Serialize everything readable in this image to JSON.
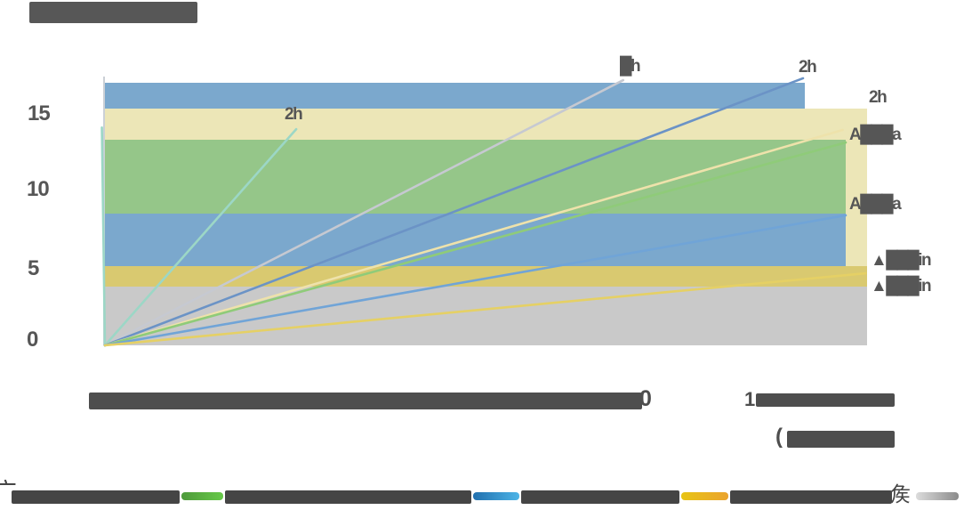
{
  "title": {
    "legible": false,
    "note": "title text rendered as illegible dark block in source image"
  },
  "axes": {
    "y_ticks": [
      "15",
      "10",
      "5",
      "0"
    ],
    "x_tick_trailing_char": "0",
    "x_right_tick_leading_char": "1",
    "x_unit_leading_char": "(",
    "x_labels_legible": false
  },
  "labels": {
    "line_top_mid": "█h",
    "line_top_right": "2h",
    "line_teal": "2h",
    "edge_top": "2h",
    "edge_upper": "A███a",
    "edge_mid": "A███a",
    "edge_low": "▲███in",
    "edge_lower": "▲███in"
  },
  "legend": {
    "left_glyph": "广",
    "right_glyph": "矦",
    "labels_legible": false,
    "items": [
      {
        "name": "series-green",
        "colors": [
          "#4e9a3b",
          "#66c848"
        ]
      },
      {
        "name": "series-blue",
        "colors": [
          "#2170ae",
          "#4db4e7"
        ]
      },
      {
        "name": "series-gold",
        "colors": [
          "#e8c414",
          "#eaa32e"
        ]
      },
      {
        "name": "series-gray",
        "colors": [
          "#dcdcdc",
          "#8b8b8b"
        ]
      }
    ]
  },
  "chart_data": {
    "type": "line",
    "description": "Fan/radial chart: straight lines from origin with duration labels (h / min), over horizontal colored value bands. Most text glyphs failed to render in source (tofu blobs).",
    "y_axis": {
      "ticks": [
        0,
        5,
        10,
        15
      ],
      "range": [
        0,
        17.2
      ]
    },
    "x_axis": {
      "legible": false,
      "normalized_range": [
        0,
        1
      ],
      "visible_fragments": [
        "0",
        "1",
        "("
      ]
    },
    "grid": false,
    "legend_position": "bottom",
    "bands": [
      {
        "name": "band-blue-top",
        "color": "#7ba8cd",
        "x": [
          0,
          0.918
        ],
        "y": [
          15.11,
          16.76
        ]
      },
      {
        "name": "band-paleyellow",
        "color": "#ece6b7",
        "x": [
          0,
          1.0
        ],
        "y": [
          13.12,
          15.11
        ]
      },
      {
        "name": "band-paleyellow-right",
        "color": "#ece6b7",
        "x": [
          0.972,
          1.0
        ],
        "y": [
          5.06,
          13.12
        ]
      },
      {
        "name": "band-green",
        "color": "#95c689",
        "x": [
          0,
          0.972
        ],
        "y": [
          8.41,
          13.12
        ]
      },
      {
        "name": "band-blue-mid",
        "color": "#7ba8cd",
        "x": [
          0,
          0.972
        ],
        "y": [
          5.06,
          8.41
        ]
      },
      {
        "name": "band-gold",
        "color": "#d9c970",
        "x": [
          0,
          1.0
        ],
        "y": [
          3.75,
          5.06
        ]
      },
      {
        "name": "band-gray",
        "color": "#c9c9c9",
        "x": [
          0,
          1.0
        ],
        "y": [
          0,
          3.75
        ]
      }
    ],
    "lines": [
      {
        "name": "line-teal-vertical",
        "color": "#9cd7c6",
        "from": [
          0,
          0
        ],
        "to": [
          -0.004,
          13.9
        ],
        "label": null
      },
      {
        "name": "line-teal",
        "color": "#9cd7c6",
        "from": [
          0,
          0
        ],
        "to": [
          0.251,
          13.8
        ],
        "label": "2h"
      },
      {
        "name": "line-gray",
        "color": "#c6c9d1",
        "from": [
          0,
          0
        ],
        "to": [
          0.68,
          16.93
        ],
        "label": "█h"
      },
      {
        "name": "line-blue-medium",
        "color": "#6b93c6",
        "from": [
          0,
          0
        ],
        "to": [
          0.916,
          17.05
        ],
        "label": "2h"
      },
      {
        "name": "line-cream",
        "color": "#eee2ab",
        "from": [
          0,
          0
        ],
        "to": [
          0.968,
          13.75
        ],
        "label": "A███a"
      },
      {
        "name": "line-green",
        "color": "#8fcb79",
        "from": [
          0,
          0
        ],
        "to": [
          0.972,
          12.95
        ],
        "label": "A███a"
      },
      {
        "name": "line-blue-light",
        "color": "#70a4d7",
        "from": [
          0,
          0
        ],
        "to": [
          0.972,
          8.3
        ],
        "label": "▲███in"
      },
      {
        "name": "line-yellow",
        "color": "#e5d065",
        "from": [
          0,
          0
        ],
        "to": [
          0.998,
          4.6
        ],
        "label": "▲███in"
      }
    ]
  }
}
